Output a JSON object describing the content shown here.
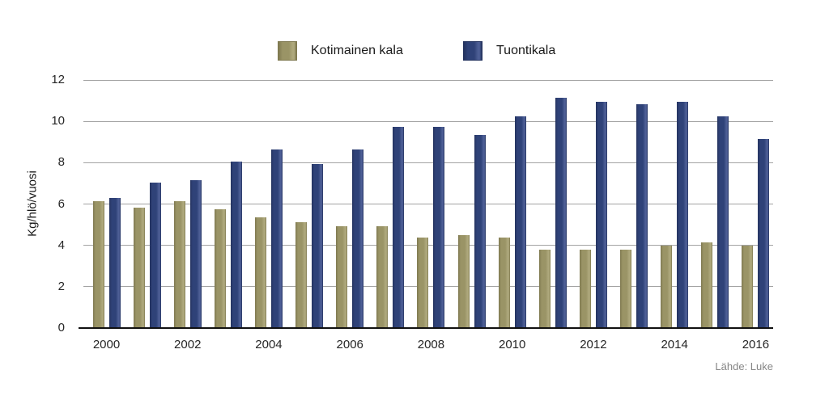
{
  "chart_data": {
    "type": "bar",
    "title": "",
    "ylabel": "Kg/hlö/vuosi",
    "xlabel": "",
    "ylim": [
      0,
      12
    ],
    "ytick_step": 2,
    "grid": true,
    "legend_position": "top",
    "categories": [
      "2000",
      "2001",
      "2002",
      "2003",
      "2004",
      "2005",
      "2006",
      "2007",
      "2008",
      "2009",
      "2010",
      "2011",
      "2012",
      "2013",
      "2014",
      "2015",
      "2016"
    ],
    "xtick_labels": [
      "2000",
      "2002",
      "2004",
      "2006",
      "2008",
      "2010",
      "2012",
      "2014",
      "2016"
    ],
    "xtick_every": 2,
    "series": [
      {
        "name": "Kotimainen kala",
        "color": "#9A9466",
        "color_dark": "#7F7950",
        "color_light": "#AEA87C",
        "values": [
          6.1,
          5.8,
          6.1,
          5.7,
          5.3,
          5.1,
          4.9,
          4.9,
          4.35,
          4.45,
          4.35,
          3.75,
          3.75,
          3.75,
          3.95,
          4.1,
          3.95
        ]
      },
      {
        "name": "Tuontikala",
        "color": "#2F4278",
        "color_dark": "#24335F",
        "color_light": "#4D5E95",
        "values": [
          6.25,
          7.0,
          7.1,
          8.0,
          8.6,
          7.9,
          8.6,
          9.7,
          9.7,
          9.3,
          10.2,
          11.1,
          10.9,
          10.8,
          10.9,
          10.2,
          9.1
        ]
      }
    ]
  },
  "axis_colors": {
    "gridline": "#a3a3a3",
    "baseline": "#111111"
  },
  "source_note": "Lähde: Luke"
}
